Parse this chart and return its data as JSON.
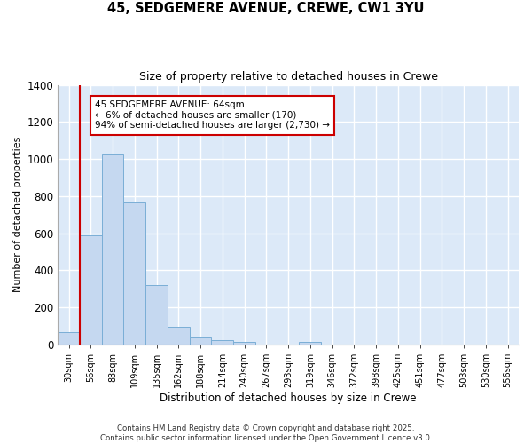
{
  "title_line1": "45, SEDGEMERE AVENUE, CREWE, CW1 3YU",
  "title_line2": "Size of property relative to detached houses in Crewe",
  "xlabel": "Distribution of detached houses by size in Crewe",
  "ylabel": "Number of detached properties",
  "bin_labels": [
    "30sqm",
    "56sqm",
    "83sqm",
    "109sqm",
    "135sqm",
    "162sqm",
    "188sqm",
    "214sqm",
    "240sqm",
    "267sqm",
    "293sqm",
    "319sqm",
    "346sqm",
    "372sqm",
    "398sqm",
    "425sqm",
    "451sqm",
    "477sqm",
    "503sqm",
    "530sqm",
    "556sqm"
  ],
  "bin_values": [
    65,
    590,
    1030,
    765,
    320,
    95,
    38,
    22,
    13,
    0,
    0,
    13,
    0,
    0,
    0,
    0,
    0,
    0,
    0,
    0,
    0
  ],
  "bar_color": "#c5d8f0",
  "bar_edge_color": "#7aaed6",
  "figure_bg": "#ffffff",
  "axes_bg": "#dce9f8",
  "grid_color": "#ffffff",
  "vline_color": "#cc0000",
  "annotation_text": "45 SEDGEMERE AVENUE: 64sqm\n← 6% of detached houses are smaller (170)\n94% of semi-detached houses are larger (2,730) →",
  "annotation_box_color": "#ffffff",
  "annotation_box_edge": "#cc0000",
  "ylim": [
    0,
    1400
  ],
  "yticks": [
    0,
    200,
    400,
    600,
    800,
    1000,
    1200,
    1400
  ],
  "footer_text": "Contains HM Land Registry data © Crown copyright and database right 2025.\nContains public sector information licensed under the Open Government Licence v3.0.",
  "figsize": [
    6.0,
    5.0
  ],
  "dpi": 100
}
